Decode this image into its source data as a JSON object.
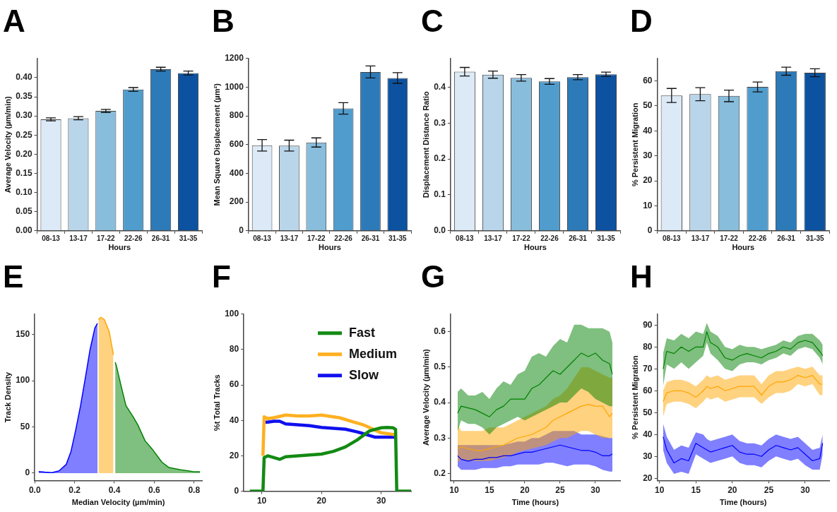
{
  "chart_data": [
    {
      "type": "bar",
      "title": "A",
      "xlabel": "Hours",
      "ylabel": "Average Velocity (µm/min)",
      "categories": [
        "08-13",
        "13-17",
        "17-22",
        "22-26",
        "26-31",
        "31-35"
      ],
      "values": [
        0.291,
        0.294,
        0.313,
        0.369,
        0.422,
        0.412
      ],
      "errors": [
        0.004,
        0.004,
        0.004,
        0.005,
        0.005,
        0.005
      ],
      "colors": [
        "#dce9f6",
        "#b9d5ea",
        "#88bddc",
        "#509ccd",
        "#2d7ab9",
        "#0c52a0"
      ],
      "ylim": [
        0,
        0.45
      ],
      "yticks": [
        {
          "value": 0,
          "label": "0.00"
        },
        {
          "value": 0.05,
          "label": "0.05"
        },
        {
          "value": 0.1,
          "label": "0.10"
        },
        {
          "value": 0.15,
          "label": "0.15"
        },
        {
          "value": 0.2,
          "label": "0.20"
        },
        {
          "value": 0.25,
          "label": "0.25"
        },
        {
          "value": 0.3,
          "label": "0.30"
        },
        {
          "value": 0.35,
          "label": "0.35"
        },
        {
          "value": 0.4,
          "label": "0.40"
        }
      ]
    },
    {
      "type": "bar",
      "title": "B",
      "xlabel": "Hours",
      "ylabel": "Mean Square Displacement (µm²)",
      "categories": [
        "08-13",
        "13-17",
        "17-22",
        "22-26",
        "26-31",
        "31-35"
      ],
      "values": [
        595,
        593,
        615,
        852,
        1106,
        1064
      ],
      "errors": [
        40,
        38,
        32,
        40,
        42,
        37
      ],
      "colors": [
        "#dce9f6",
        "#b9d5ea",
        "#88bddc",
        "#509ccd",
        "#2d7ab9",
        "#0c52a0"
      ],
      "ylim": [
        0,
        1200
      ],
      "yticks": [
        0,
        200,
        400,
        600,
        800,
        1000,
        1200
      ]
    },
    {
      "type": "bar",
      "title": "C",
      "xlabel": "Hours",
      "ylabel": "Displacement Distance Ratio",
      "categories": [
        "08-13",
        "13-17",
        "17-22",
        "22-26",
        "26-31",
        "31-35"
      ],
      "values": [
        0.443,
        0.435,
        0.426,
        0.416,
        0.428,
        0.436
      ],
      "errors": [
        0.012,
        0.01,
        0.009,
        0.008,
        0.007,
        0.006
      ],
      "colors": [
        "#dce9f6",
        "#b9d5ea",
        "#88bddc",
        "#509ccd",
        "#2d7ab9",
        "#0c52a0"
      ],
      "ylim": [
        0,
        0.48
      ],
      "yticks": [
        {
          "value": 0,
          "label": "0.0"
        },
        0.1,
        0.2,
        0.3,
        0.4
      ]
    },
    {
      "type": "bar",
      "title": "D",
      "xlabel": "Hours",
      "ylabel": "% Persistent Migration",
      "categories": [
        "08-13",
        "13-17",
        "17-22",
        "22-26",
        "26-31",
        "31-35"
      ],
      "values": [
        54.2,
        54.7,
        54.0,
        57.6,
        63.9,
        63.3
      ],
      "errors": [
        2.8,
        2.6,
        2.3,
        2.0,
        1.6,
        1.6
      ],
      "colors": [
        "#dce9f6",
        "#b9d5ea",
        "#88bddc",
        "#509ccd",
        "#2d7ab9",
        "#0c52a0"
      ],
      "ylim": [
        0,
        69
      ],
      "yticks": [
        0,
        10,
        20,
        30,
        40,
        50,
        60
      ]
    },
    {
      "type": "area",
      "title": "E",
      "xlabel": "Median Velocity (µm/min)",
      "ylabel": "Track Density",
      "xlim": [
        0,
        0.84
      ],
      "xticks": [
        {
          "value": 0,
          "label": "0.0"
        },
        0.2,
        0.4,
        0.6,
        0.8
      ],
      "ylim": [
        -8,
        172
      ],
      "yticks": [
        0,
        50,
        100,
        150
      ],
      "series": [
        {
          "color": "#0000ff",
          "x": [
            0.02,
            0.05,
            0.086,
            0.122,
            0.158,
            0.182,
            0.206,
            0.23,
            0.254,
            0.278,
            0.302,
            0.315
          ],
          "values": [
            1.6,
            1,
            0.5,
            2.4,
            9.4,
            23.5,
            47,
            73,
            103,
            134,
            157,
            162
          ]
        },
        {
          "color": "#ffa500",
          "x": [
            0.32,
            0.332,
            0.35,
            0.374,
            0.395
          ],
          "values": [
            166,
            168.6,
            166,
            153,
            128
          ]
        },
        {
          "color": "#008000",
          "x": [
            0.404,
            0.41,
            0.434,
            0.458,
            0.494,
            0.518,
            0.554,
            0.59,
            0.638,
            0.674,
            0.734,
            0.794,
            0.83
          ],
          "values": [
            120,
            116,
            94,
            73,
            61,
            52,
            35,
            26,
            12,
            6,
            3.5,
            1.6,
            1.5
          ]
        }
      ]
    },
    {
      "type": "line",
      "title": "F",
      "ylabel": "%t Total Tracks",
      "xlim": [
        7,
        35
      ],
      "xticks": [
        10,
        20,
        30
      ],
      "ylim": [
        0,
        100
      ],
      "yticks": [
        0,
        20,
        40,
        60,
        80,
        100
      ],
      "legend": "top right",
      "series": [
        {
          "name": "Fast",
          "color": "#138a13",
          "x": [
            8,
            10.2,
            10.4,
            11,
            12,
            13,
            14,
            16,
            18,
            20,
            22,
            24,
            26,
            27,
            28,
            29,
            30,
            31,
            32,
            32.4,
            32.6,
            35
          ],
          "values": [
            0,
            0,
            19,
            20,
            19,
            18,
            19.5,
            20,
            20.5,
            21,
            22.5,
            25,
            29,
            31.5,
            34,
            35,
            35.8,
            36,
            35.8,
            35,
            0,
            0
          ]
        },
        {
          "name": "Medium",
          "color": "#ffb020",
          "x": [
            10.2,
            10.4,
            11,
            12,
            14,
            16,
            18,
            20,
            21,
            22,
            23,
            24,
            25,
            26,
            27,
            28,
            29,
            30,
            31,
            32,
            32.4
          ],
          "values": [
            20,
            42,
            41,
            41.5,
            43,
            42.5,
            42.5,
            43,
            42.5,
            42,
            41.5,
            40.5,
            39.5,
            38.5,
            37.5,
            36,
            34.5,
            33,
            32.5,
            32,
            32
          ]
        },
        {
          "name": "Slow",
          "color": "#1010ee",
          "x": [
            10.6,
            11,
            12,
            13,
            14,
            16,
            18,
            20,
            22,
            24,
            26,
            28,
            29,
            30,
            31,
            32,
            32.4
          ],
          "values": [
            39,
            39,
            39.5,
            39.5,
            38,
            37.5,
            37,
            36,
            35.5,
            35,
            33.5,
            31.5,
            30.5,
            30.5,
            30.5,
            30.5,
            30.5
          ]
        }
      ]
    },
    {
      "type": "line",
      "title": "G",
      "xlabel": "Time (hours)",
      "ylabel": "Average Velocity (µm/min)",
      "xlim": [
        9.5,
        33.5
      ],
      "xticks": [
        10,
        15,
        20,
        25,
        30
      ],
      "ylim": [
        0.18,
        0.65
      ],
      "yticks": [
        0.2,
        0.3,
        0.4,
        0.5,
        0.6
      ],
      "x": [
        10.5,
        11,
        12,
        13,
        14,
        15,
        16,
        17,
        18,
        19,
        20,
        21,
        22,
        23,
        24,
        25,
        26,
        27,
        28,
        29,
        30,
        31,
        32,
        32.4
      ],
      "series": [
        {
          "color": "#008000",
          "values": [
            0.37,
            0.39,
            0.385,
            0.38,
            0.37,
            0.36,
            0.38,
            0.39,
            0.41,
            0.41,
            0.41,
            0.44,
            0.45,
            0.47,
            0.49,
            0.48,
            0.5,
            0.52,
            0.54,
            0.53,
            0.54,
            0.52,
            0.51,
            0.48
          ],
          "upper": [
            0.43,
            0.44,
            0.42,
            0.42,
            0.43,
            0.41,
            0.44,
            0.46,
            0.45,
            0.48,
            0.49,
            0.53,
            0.54,
            0.53,
            0.56,
            0.58,
            0.57,
            0.62,
            0.62,
            0.61,
            0.61,
            0.61,
            0.6,
            0.57
          ],
          "lower": [
            0.32,
            0.35,
            0.34,
            0.34,
            0.33,
            0.31,
            0.33,
            0.34,
            0.35,
            0.36,
            0.35,
            0.36,
            0.37,
            0.38,
            0.39,
            0.4,
            0.4,
            0.42,
            0.44,
            0.43,
            0.41,
            0.4,
            0.39,
            0.39
          ]
        },
        {
          "color": "#ffa500",
          "values": [
            0.27,
            0.275,
            0.27,
            0.265,
            0.265,
            0.27,
            0.275,
            0.28,
            0.29,
            0.3,
            0.305,
            0.31,
            0.32,
            0.33,
            0.35,
            0.36,
            0.37,
            0.38,
            0.39,
            0.395,
            0.39,
            0.39,
            0.36,
            0.37
          ],
          "upper": [
            0.34,
            0.32,
            0.32,
            0.32,
            0.32,
            0.33,
            0.33,
            0.33,
            0.34,
            0.35,
            0.36,
            0.37,
            0.38,
            0.39,
            0.41,
            0.42,
            0.44,
            0.47,
            0.5,
            0.5,
            0.49,
            0.48,
            0.47,
            0.47
          ],
          "lower": [
            0.23,
            0.24,
            0.235,
            0.235,
            0.235,
            0.235,
            0.24,
            0.245,
            0.25,
            0.26,
            0.265,
            0.27,
            0.275,
            0.28,
            0.29,
            0.3,
            0.3,
            0.31,
            0.32,
            0.32,
            0.31,
            0.3,
            0.3,
            0.3
          ]
        },
        {
          "color": "#0000ff",
          "values": [
            0.25,
            0.24,
            0.235,
            0.24,
            0.24,
            0.245,
            0.245,
            0.25,
            0.25,
            0.255,
            0.26,
            0.26,
            0.265,
            0.27,
            0.275,
            0.28,
            0.275,
            0.27,
            0.265,
            0.265,
            0.26,
            0.25,
            0.25,
            0.255
          ],
          "upper": [
            0.28,
            0.28,
            0.28,
            0.28,
            0.28,
            0.28,
            0.28,
            0.28,
            0.285,
            0.29,
            0.29,
            0.3,
            0.3,
            0.31,
            0.32,
            0.32,
            0.32,
            0.32,
            0.31,
            0.31,
            0.31,
            0.305,
            0.3,
            0.3
          ],
          "lower": [
            0.22,
            0.21,
            0.21,
            0.21,
            0.215,
            0.215,
            0.215,
            0.22,
            0.22,
            0.225,
            0.225,
            0.225,
            0.225,
            0.23,
            0.23,
            0.225,
            0.22,
            0.225,
            0.225,
            0.225,
            0.22,
            0.21,
            0.205,
            0.205
          ]
        }
      ]
    },
    {
      "type": "line",
      "title": "H",
      "xlabel": "Time (hours)",
      "ylabel": "% Persistent Migration",
      "xlim": [
        9.7,
        33.3
      ],
      "xticks": [
        10,
        15,
        20,
        25,
        30
      ],
      "ylim": [
        19,
        95
      ],
      "yticks": [
        20,
        30,
        40,
        50,
        60,
        70,
        80,
        90
      ],
      "x": [
        10.5,
        11,
        12,
        13,
        14,
        15,
        16,
        16.5,
        17,
        18,
        19,
        20,
        21,
        22,
        23,
        24,
        25,
        26,
        27,
        28,
        29,
        30,
        31,
        32,
        32.4
      ],
      "series": [
        {
          "color": "#008000",
          "values": [
            70,
            78,
            77,
            80,
            78,
            80,
            80,
            87,
            82,
            80,
            75,
            74,
            76,
            77,
            76,
            75,
            77,
            78,
            80,
            79,
            82,
            83,
            82,
            78,
            76
          ],
          "upper": [
            77,
            84,
            83,
            86,
            84,
            87,
            86,
            91,
            87,
            85,
            80,
            79,
            81,
            80,
            80,
            79,
            80,
            81,
            83,
            82,
            85,
            86,
            86,
            83,
            81
          ],
          "lower": [
            62,
            72,
            70,
            73,
            70,
            73,
            76,
            82,
            77,
            74,
            70,
            69,
            72,
            73,
            73,
            72,
            74,
            75,
            77,
            76,
            79,
            80,
            79,
            75,
            72
          ]
        },
        {
          "color": "#ffa500",
          "values": [
            55,
            59,
            60,
            60,
            59,
            57,
            60,
            62,
            61,
            62,
            60,
            61,
            62,
            62,
            62,
            58,
            62,
            64,
            64,
            65,
            67,
            66,
            67,
            63,
            63
          ],
          "upper": [
            60,
            64,
            65,
            65,
            64,
            62,
            65,
            67,
            66,
            67,
            65,
            66,
            67,
            67,
            67,
            63,
            67,
            69,
            69,
            70,
            71,
            70,
            71,
            67,
            67
          ],
          "lower": [
            48,
            54,
            55,
            55,
            54,
            52,
            55,
            57,
            56,
            57,
            55,
            56,
            57,
            57,
            57,
            54,
            57,
            59,
            59,
            60,
            63,
            62,
            63,
            58,
            58
          ]
        },
        {
          "color": "#0000ff",
          "values": [
            39,
            33,
            27,
            29,
            28,
            36,
            34,
            33,
            32,
            33,
            34,
            35,
            32,
            31,
            31,
            30,
            33,
            35,
            34,
            33,
            34,
            31,
            28,
            29,
            36
          ],
          "upper": [
            45,
            39,
            33,
            35,
            34,
            41,
            40,
            38,
            37,
            38,
            39,
            40,
            37,
            36,
            36,
            35,
            38,
            40,
            39,
            38,
            39,
            36,
            33,
            34,
            40
          ],
          "lower": [
            33,
            27,
            22,
            23,
            22,
            31,
            29,
            28,
            27,
            28,
            29,
            30,
            27,
            26,
            26,
            25,
            28,
            30,
            29,
            28,
            29,
            26,
            24,
            24,
            31
          ]
        }
      ]
    }
  ]
}
